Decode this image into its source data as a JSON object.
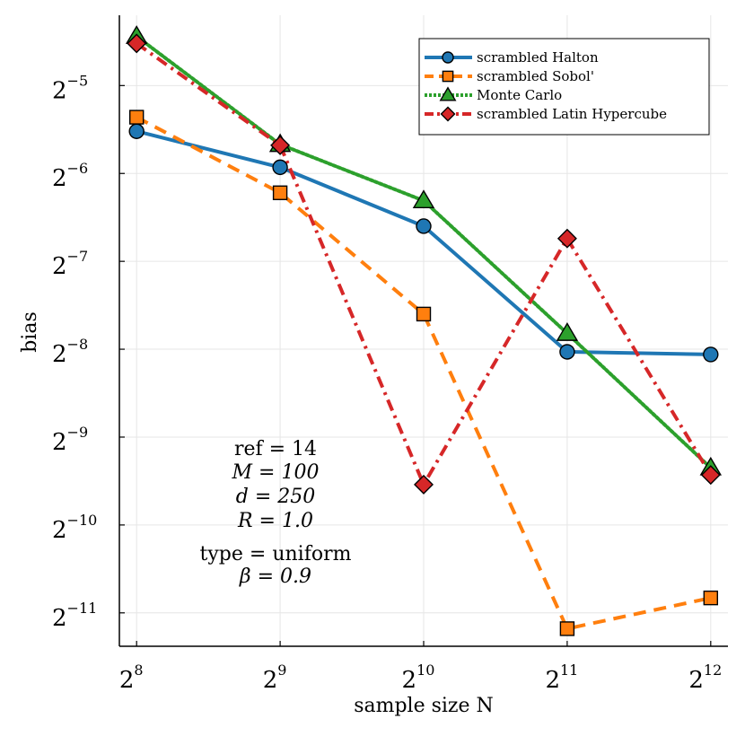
{
  "chart_data": {
    "type": "line",
    "xscale": "log2",
    "yscale": "log2",
    "xlabel": "sample size N",
    "ylabel": "bias",
    "x": [
      8,
      9,
      10,
      11,
      12
    ],
    "x_display": "log2 of sample size",
    "xlim_log2": [
      7.88,
      12.12
    ],
    "ylim_log2": [
      -11.38,
      -4.2
    ],
    "x_ticks": [
      8,
      9,
      10,
      11,
      12
    ],
    "y_ticks": [
      -11,
      -10,
      -9,
      -8,
      -7,
      -6,
      -5
    ],
    "tick_base": "2",
    "grid": true,
    "legend_position": "top-right",
    "series": [
      {
        "name": "scrambled Halton",
        "marker": "circle",
        "line": "solid",
        "color": "#1f77b4",
        "log2_values": [
          -5.52,
          -5.93,
          -6.6,
          -8.03,
          -8.06
        ]
      },
      {
        "name": "scrambled Sobol'",
        "marker": "square",
        "line": "dashed",
        "color": "#ff7f0e",
        "log2_values": [
          -5.36,
          -6.22,
          -7.6,
          -11.18,
          -10.83
        ]
      },
      {
        "name": "Monte Carlo",
        "marker": "triangle",
        "line": "dotted",
        "color": "#2ca02c",
        "log2_values": [
          -4.44,
          -5.67,
          -6.31,
          -7.82,
          -9.35
        ]
      },
      {
        "name": "scrambled Latin Hypercube",
        "marker": "diamond",
        "line": "dashdot",
        "color": "#d62728",
        "log2_values": [
          -4.52,
          -5.68,
          -9.54,
          -6.74,
          -9.43
        ]
      }
    ],
    "annotations": [
      "ref = 14",
      "M = 100",
      "d = 250",
      "R = 1.0",
      "type = uniform",
      "β = 0.9"
    ]
  }
}
